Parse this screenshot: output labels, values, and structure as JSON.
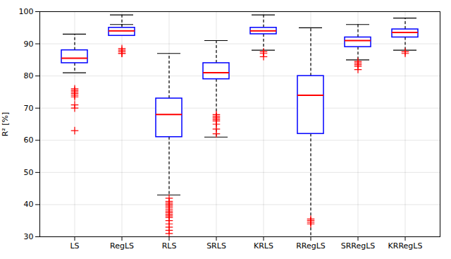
{
  "chart_data": {
    "type": "box",
    "categories": [
      "LS",
      "RegLS",
      "RLS",
      "SRLS",
      "KRLS",
      "RRegLS",
      "SRRegLS",
      "KRRegLS"
    ],
    "boxes": [
      {
        "q1": 84,
        "median": 85.5,
        "q3": 88,
        "whislo": 81,
        "whishi": 93,
        "fliers": [
          76,
          75.5,
          75,
          74.5,
          74,
          73.5,
          71,
          70,
          63
        ]
      },
      {
        "q1": 92.5,
        "median": 94,
        "q3": 95,
        "whislo": 96,
        "whishi": 99,
        "fliers": [
          88.5,
          88,
          87.5,
          87,
          87
        ]
      },
      {
        "q1": 61,
        "median": 68,
        "q3": 73,
        "whislo": 43,
        "whishi": 87,
        "fliers": [
          42,
          41,
          40.5,
          40,
          39.5,
          39,
          38.5,
          38,
          37.5,
          37,
          36.5,
          36,
          35,
          34,
          33,
          32,
          31
        ]
      },
      {
        "q1": 79,
        "median": 81,
        "q3": 84,
        "whislo": 61,
        "whishi": 91,
        "fliers": [
          68,
          67.5,
          67,
          66.5,
          66,
          65,
          63.5,
          62
        ]
      },
      {
        "q1": 93,
        "median": 94,
        "q3": 95,
        "whislo": 88,
        "whishi": 99,
        "fliers": [
          87.5,
          87,
          86
        ]
      },
      {
        "q1": 62,
        "median": 74,
        "q3": 80,
        "whislo": 30,
        "whishi": 95,
        "fliers": [
          35.5,
          35,
          34.5,
          34
        ]
      },
      {
        "q1": 89,
        "median": 91,
        "q3": 92,
        "whislo": 85,
        "whishi": 96,
        "fliers": [
          84.5,
          84,
          83.5,
          83,
          82
        ]
      },
      {
        "q1": 92,
        "median": 93.5,
        "q3": 94.5,
        "whislo": 88,
        "whishi": 98,
        "fliers": [
          87.5,
          87
        ]
      }
    ],
    "ylabel": "R² [%]",
    "ylim": [
      30,
      100
    ],
    "yticks": [
      30,
      40,
      50,
      60,
      70,
      80,
      90,
      100
    ],
    "grid": true,
    "colors": {
      "box": "#0000FF",
      "median": "#FF0000",
      "whisker": "#000000",
      "flier": "#FF0000"
    },
    "marker": "plus",
    "line_style": "dashed"
  }
}
